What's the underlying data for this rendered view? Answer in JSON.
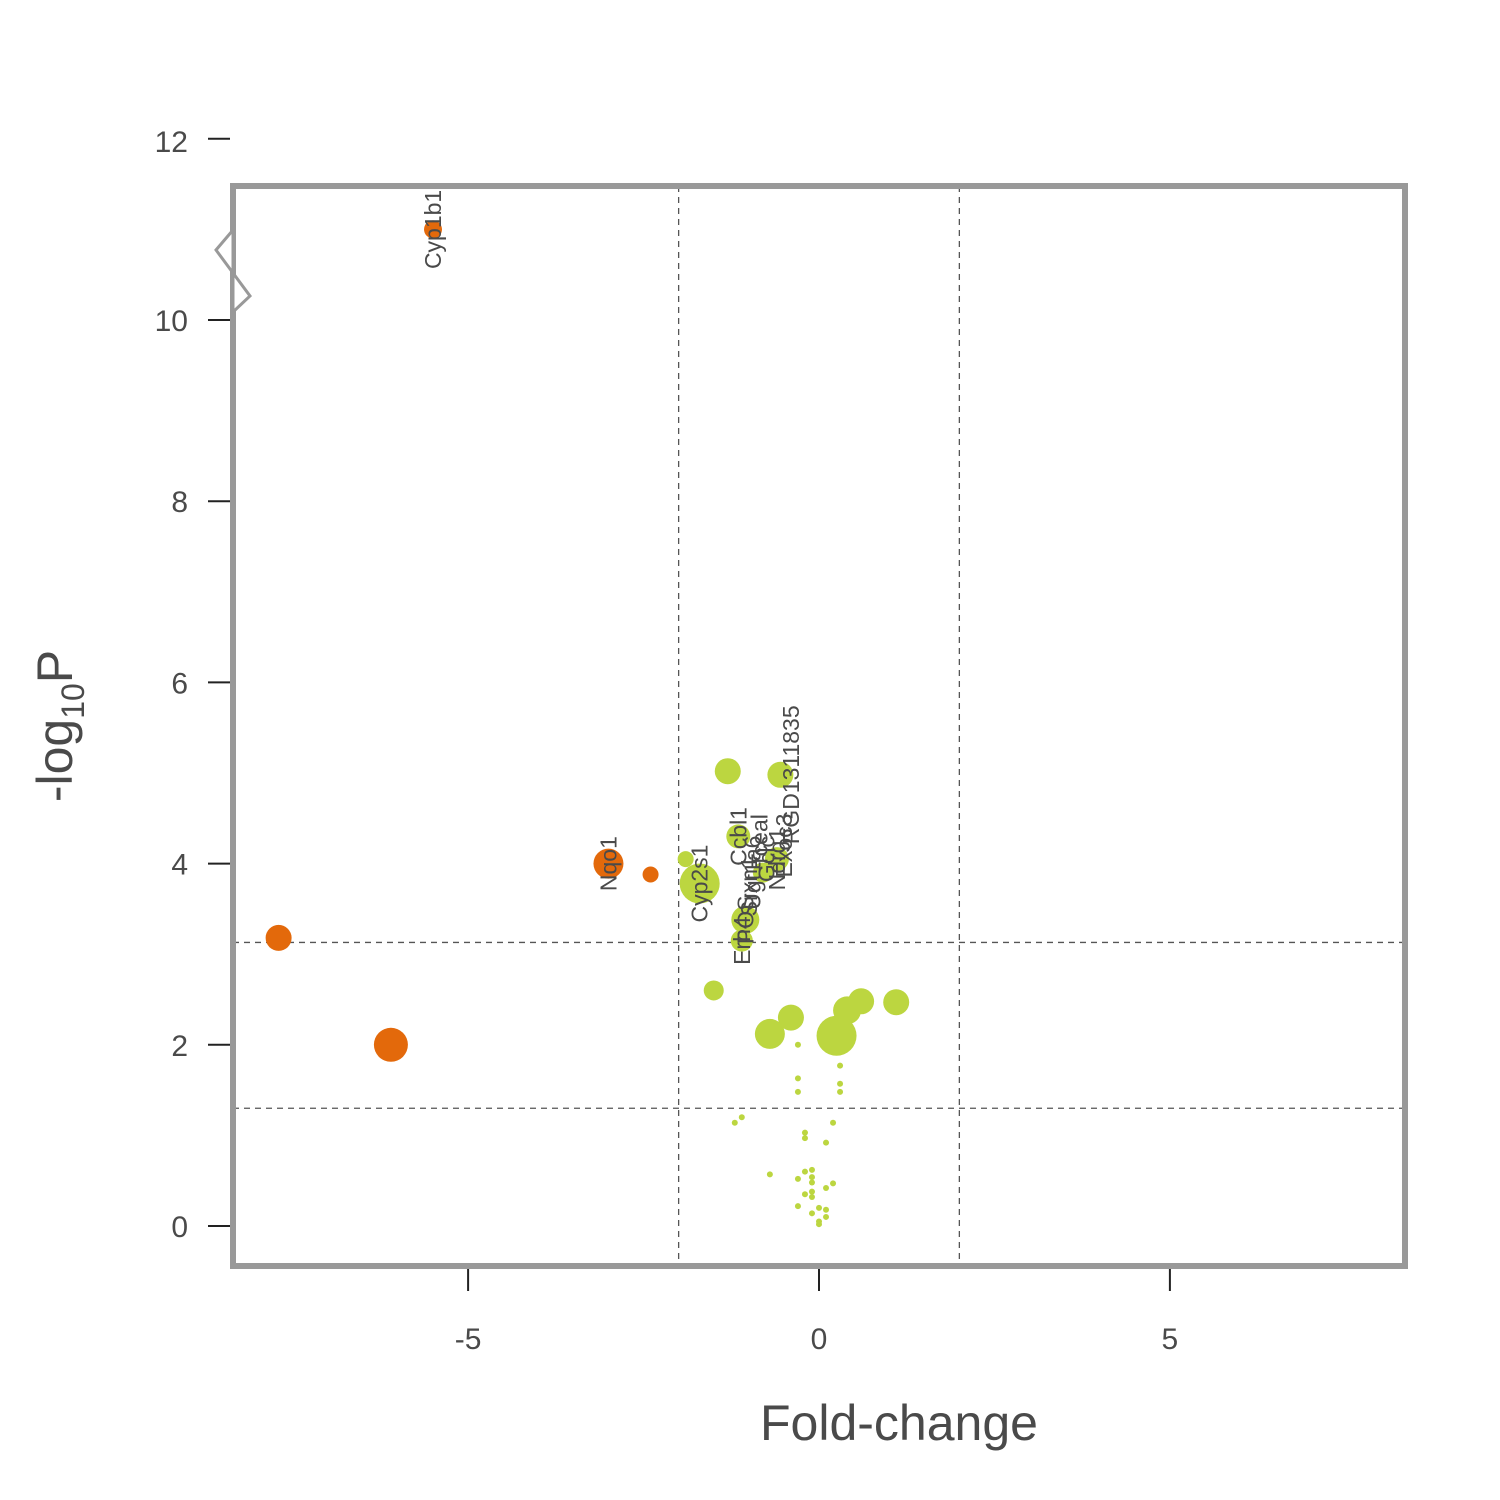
{
  "chart_data": {
    "type": "scatter",
    "title": "",
    "xlabel": "Fold-change",
    "ylabel_main": "-log",
    "ylabel_sub": "10",
    "ylabel_tail": "P",
    "xlim": [
      -8.35,
      8.35
    ],
    "ylim": [
      -0.4,
      11.5
    ],
    "axis_break": true,
    "x_ticks": [
      -5,
      0,
      5
    ],
    "x_tick_labels": [
      "-5",
      "0",
      "5"
    ],
    "y_ticks": [
      0,
      2,
      4,
      6,
      8,
      10,
      12
    ],
    "y_tick_labels": [
      "0",
      "2",
      "4",
      "6",
      "8",
      "10",
      "12"
    ],
    "fc_cutoffs": [
      -2,
      2
    ],
    "p_cutoffs": [
      1.3,
      3.13
    ],
    "grid": false,
    "legend": "none",
    "colors": {
      "down": "#E3690B",
      "ns": "#BCD640",
      "frame": "#999999",
      "cutline": "#555555"
    },
    "points": [
      {
        "x": -5.5,
        "y": 11.0,
        "size": 9,
        "group": "down"
      },
      {
        "x": -3.0,
        "y": 4.0,
        "size": 15,
        "group": "down"
      },
      {
        "x": -2.4,
        "y": 3.88,
        "size": 8,
        "group": "down"
      },
      {
        "x": -7.7,
        "y": 3.18,
        "size": 13,
        "group": "down"
      },
      {
        "x": -6.1,
        "y": 2.0,
        "size": 17,
        "group": "down"
      },
      {
        "x": -1.9,
        "y": 4.05,
        "size": 8,
        "group": "ns"
      },
      {
        "x": -1.7,
        "y": 3.78,
        "size": 20,
        "group": "ns"
      },
      {
        "x": -1.3,
        "y": 5.02,
        "size": 13,
        "group": "ns"
      },
      {
        "x": -1.15,
        "y": 4.3,
        "size": 12,
        "group": "ns"
      },
      {
        "x": -1.05,
        "y": 3.38,
        "size": 14,
        "group": "ns"
      },
      {
        "x": -1.1,
        "y": 3.15,
        "size": 11,
        "group": "ns"
      },
      {
        "x": -0.8,
        "y": 3.9,
        "size": 10,
        "group": "ns"
      },
      {
        "x": -0.6,
        "y": 4.05,
        "size": 12,
        "group": "ns"
      },
      {
        "x": -0.55,
        "y": 4.98,
        "size": 13,
        "group": "ns"
      },
      {
        "x": -1.5,
        "y": 2.6,
        "size": 10,
        "group": "ns"
      },
      {
        "x": -0.7,
        "y": 2.12,
        "size": 15,
        "group": "ns"
      },
      {
        "x": -0.4,
        "y": 2.3,
        "size": 13,
        "group": "ns"
      },
      {
        "x": 0.25,
        "y": 2.1,
        "size": 20,
        "group": "ns"
      },
      {
        "x": 0.4,
        "y": 2.38,
        "size": 14,
        "group": "ns"
      },
      {
        "x": 0.6,
        "y": 2.48,
        "size": 13,
        "group": "ns"
      },
      {
        "x": 1.1,
        "y": 2.47,
        "size": 13,
        "group": "ns"
      },
      {
        "x": -0.3,
        "y": 2.0,
        "size": 3,
        "group": "ns"
      },
      {
        "x": 0.3,
        "y": 1.77,
        "size": 3,
        "group": "ns"
      },
      {
        "x": -0.3,
        "y": 1.63,
        "size": 3,
        "group": "ns"
      },
      {
        "x": 0.3,
        "y": 1.57,
        "size": 3,
        "group": "ns"
      },
      {
        "x": -0.3,
        "y": 1.48,
        "size": 3,
        "group": "ns"
      },
      {
        "x": 0.3,
        "y": 1.48,
        "size": 3,
        "group": "ns"
      },
      {
        "x": -1.1,
        "y": 1.2,
        "size": 3,
        "group": "ns"
      },
      {
        "x": -1.2,
        "y": 1.14,
        "size": 3,
        "group": "ns"
      },
      {
        "x": 0.2,
        "y": 1.14,
        "size": 3,
        "group": "ns"
      },
      {
        "x": -0.2,
        "y": 1.03,
        "size": 3,
        "group": "ns"
      },
      {
        "x": -0.2,
        "y": 0.97,
        "size": 3,
        "group": "ns"
      },
      {
        "x": 0.1,
        "y": 0.92,
        "size": 3,
        "group": "ns"
      },
      {
        "x": -0.7,
        "y": 0.57,
        "size": 3,
        "group": "ns"
      },
      {
        "x": -0.2,
        "y": 0.6,
        "size": 3,
        "group": "ns"
      },
      {
        "x": -0.1,
        "y": 0.62,
        "size": 3,
        "group": "ns"
      },
      {
        "x": -0.1,
        "y": 0.54,
        "size": 3,
        "group": "ns"
      },
      {
        "x": -0.3,
        "y": 0.52,
        "size": 3,
        "group": "ns"
      },
      {
        "x": -0.1,
        "y": 0.48,
        "size": 3,
        "group": "ns"
      },
      {
        "x": 0.2,
        "y": 0.47,
        "size": 3,
        "group": "ns"
      },
      {
        "x": 0.1,
        "y": 0.42,
        "size": 3,
        "group": "ns"
      },
      {
        "x": -0.1,
        "y": 0.38,
        "size": 3,
        "group": "ns"
      },
      {
        "x": -0.2,
        "y": 0.35,
        "size": 3,
        "group": "ns"
      },
      {
        "x": -0.1,
        "y": 0.32,
        "size": 3,
        "group": "ns"
      },
      {
        "x": -0.3,
        "y": 0.22,
        "size": 3,
        "group": "ns"
      },
      {
        "x": 0.0,
        "y": 0.2,
        "size": 3,
        "group": "ns"
      },
      {
        "x": 0.1,
        "y": 0.18,
        "size": 3,
        "group": "ns"
      },
      {
        "x": -0.1,
        "y": 0.14,
        "size": 3,
        "group": "ns"
      },
      {
        "x": 0.1,
        "y": 0.1,
        "size": 3,
        "group": "ns"
      },
      {
        "x": 0.0,
        "y": 0.05,
        "size": 3,
        "group": "ns"
      },
      {
        "x": 0.0,
        "y": 0.02,
        "size": 3,
        "group": "ns"
      }
    ],
    "labels": [
      {
        "text": "Cyp1b1",
        "x": -5.5,
        "y": 11.0
      },
      {
        "text": "Nqo1",
        "x": -3.0,
        "y": 4.0
      },
      {
        "text": "Cyp2s1",
        "x": -1.7,
        "y": 3.78
      },
      {
        "text": "POS",
        "x": -1.05,
        "y": 3.38
      },
      {
        "text": "Erh4",
        "x": -1.1,
        "y": 3.15
      },
      {
        "text": "Ugt1a6",
        "x": -0.95,
        "y": 3.9
      },
      {
        "text": "Srxn1",
        "x": -1.0,
        "y": 3.75
      },
      {
        "text": "Ccbl1",
        "x": -1.15,
        "y": 4.3
      },
      {
        "text": "Tceal",
        "x": -0.85,
        "y": 4.25
      },
      {
        "text": "Gclc",
        "x": -0.75,
        "y": 4.05
      },
      {
        "text": "Ndrg1",
        "x": -0.6,
        "y": 4.05
      },
      {
        "text": "Exoc3",
        "x": -0.5,
        "y": 4.2
      },
      {
        "text": "RGD1311835",
        "x": -0.4,
        "y": 4.98
      }
    ]
  }
}
